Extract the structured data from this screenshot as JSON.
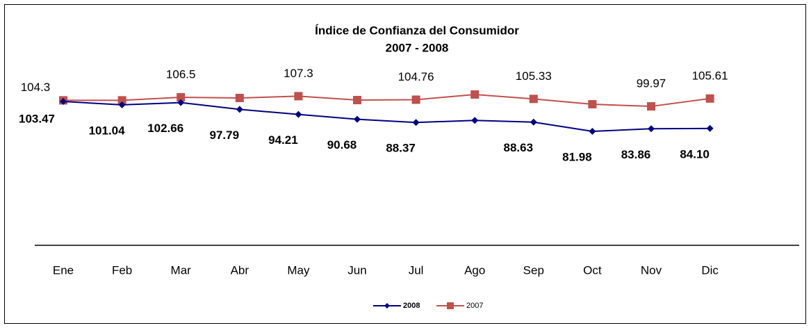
{
  "chart_data": {
    "type": "line",
    "title": "Índice de Confianza del Consumidor",
    "subtitle": "2007 - 2008",
    "categories": [
      "Ene",
      "Feb",
      "Mar",
      "Abr",
      "May",
      "Jun",
      "Jul",
      "Ago",
      "Sep",
      "Oct",
      "Nov",
      "Dic"
    ],
    "series": [
      {
        "name": "2008",
        "color": "#000080",
        "marker": "diamond",
        "values": [
          103.47,
          101.04,
          102.66,
          97.79,
          94.21,
          90.68,
          88.37,
          89.9,
          88.63,
          81.98,
          83.86,
          84.1
        ],
        "value_labels": [
          "103.47",
          "101.04",
          "102.66",
          "97.79",
          "94.21",
          "90.68",
          "88.37",
          null,
          "88.63",
          "81.98",
          "83.86",
          "84.10"
        ]
      },
      {
        "name": "2007",
        "color": "#c0504d",
        "marker": "square",
        "values": [
          104.3,
          104.3,
          106.5,
          106.0,
          107.3,
          104.5,
          104.76,
          108.5,
          105.33,
          101.5,
          99.97,
          105.61
        ],
        "value_labels": [
          "104.3",
          null,
          "106.5",
          null,
          "107.3",
          null,
          "104.76",
          null,
          "105.33",
          null,
          "99.97",
          "105.61"
        ]
      }
    ],
    "ylim": [
      0,
      120
    ],
    "legend": "bottom"
  }
}
